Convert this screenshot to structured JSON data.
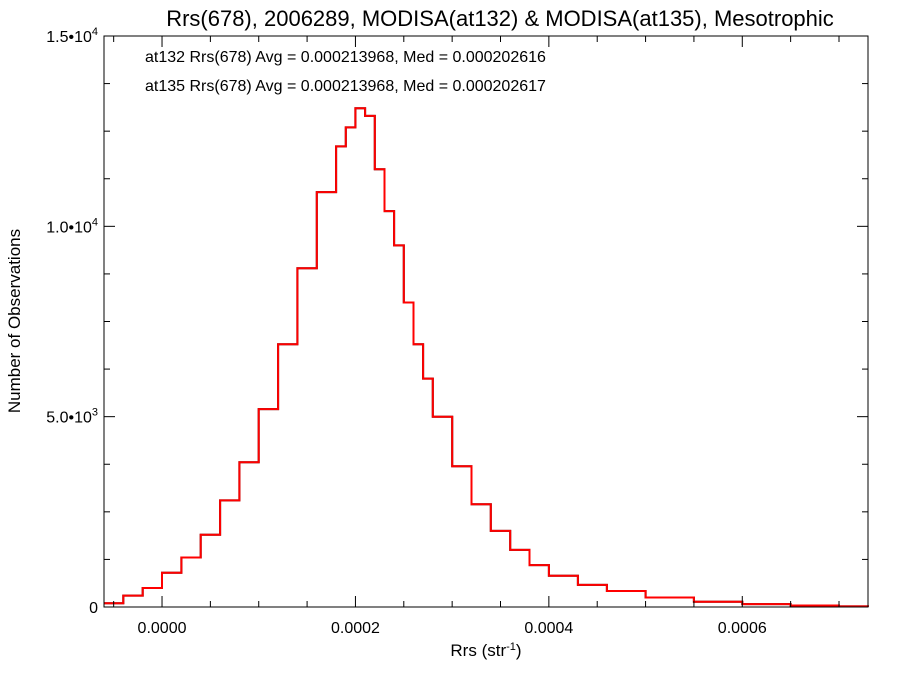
{
  "chart_data": {
    "type": "line",
    "step": true,
    "title": "Rrs(678), 2006289, MODISA(at132) & MODISA(at135), Mesotrophic",
    "xlabel": {
      "base": "Rrs (str",
      "sup": "-1",
      "close": ")"
    },
    "ylabel": "Number of Observations",
    "xlim": [
      -6e-05,
      0.00073
    ],
    "ylim": [
      0,
      15000
    ],
    "xticks": [
      {
        "value": 0.0,
        "label": "0.0000"
      },
      {
        "value": 0.0002,
        "label": "0.0002"
      },
      {
        "value": 0.0004,
        "label": "0.0004"
      },
      {
        "value": 0.0006,
        "label": "0.0006"
      }
    ],
    "yticks": [
      {
        "value": 0,
        "mant": "0",
        "exp": ""
      },
      {
        "value": 5000,
        "mant": "5.0•10",
        "exp": "3"
      },
      {
        "value": 10000,
        "mant": "1.0•10",
        "exp": "4"
      },
      {
        "value": 15000,
        "mant": "1.5•10",
        "exp": "4"
      }
    ],
    "grid": false,
    "series": [
      {
        "name": "at132",
        "color": "#000000",
        "annotation": "at132 Rrs(678) Avg = 0.000213968, Med = 0.000202616",
        "x": [
          -6e-05,
          -4e-05,
          -2e-05,
          0.0,
          2e-05,
          4e-05,
          6e-05,
          8e-05,
          0.0001,
          0.00012,
          0.00014,
          0.00016,
          0.00018,
          0.00019,
          0.0002,
          0.00021,
          0.00022,
          0.00023,
          0.00024,
          0.00025,
          0.00026,
          0.00027,
          0.00028,
          0.0003,
          0.00032,
          0.00034,
          0.00036,
          0.00038,
          0.0004,
          0.00043,
          0.00046,
          0.0005,
          0.00055,
          0.0006,
          0.00065,
          0.0007,
          0.00073
        ],
        "y": [
          100,
          300,
          500,
          900,
          1300,
          1900,
          2800,
          3800,
          5200,
          6900,
          8900,
          10900,
          12100,
          12600,
          13100,
          12900,
          11500,
          10400,
          9500,
          8000,
          6900,
          6000,
          5000,
          3700,
          2700,
          2000,
          1500,
          1100,
          820,
          580,
          420,
          250,
          140,
          75,
          40,
          15,
          5
        ]
      },
      {
        "name": "at135",
        "color": "#ff0000",
        "annotation": "at135 Rrs(678) Avg = 0.000213968, Med = 0.000202617",
        "x": [
          -6e-05,
          -4e-05,
          -2e-05,
          0.0,
          2e-05,
          4e-05,
          6e-05,
          8e-05,
          0.0001,
          0.00012,
          0.00014,
          0.00016,
          0.00018,
          0.00019,
          0.0002,
          0.00021,
          0.00022,
          0.00023,
          0.00024,
          0.00025,
          0.00026,
          0.00027,
          0.00028,
          0.0003,
          0.00032,
          0.00034,
          0.00036,
          0.00038,
          0.0004,
          0.00043,
          0.00046,
          0.0005,
          0.00055,
          0.0006,
          0.00065,
          0.0007,
          0.00073
        ],
        "y": [
          100,
          300,
          500,
          900,
          1300,
          1900,
          2800,
          3800,
          5200,
          6900,
          8900,
          10900,
          12100,
          12600,
          13100,
          12900,
          11500,
          10400,
          9500,
          8000,
          6900,
          6000,
          5000,
          3700,
          2700,
          2000,
          1500,
          1100,
          820,
          580,
          420,
          250,
          140,
          75,
          40,
          15,
          5
        ]
      }
    ]
  }
}
